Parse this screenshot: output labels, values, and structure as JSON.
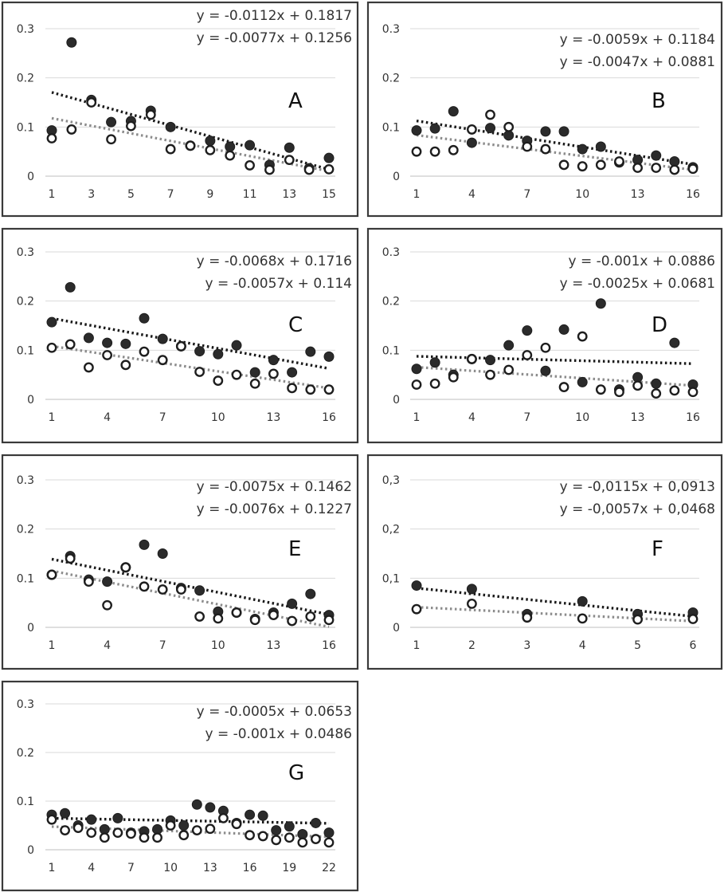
{
  "chart_data": [
    {
      "type": "scatter",
      "panel_label": "A",
      "equations": [
        "y = -0.0112x + 0.1817",
        "y = -0.0077x + 0.1256"
      ],
      "ylim": [
        0,
        0.3
      ],
      "y_ticks": [
        "0",
        "0.1",
        "0.2",
        "0.3"
      ],
      "xlim": [
        1,
        15
      ],
      "x_ticks": [
        "1",
        "3",
        "5",
        "7",
        "9",
        "11",
        "13",
        "15"
      ],
      "grid": true,
      "series": [
        {
          "marker": "filled",
          "x": [
            1,
            2,
            3,
            4,
            5,
            6,
            7,
            8,
            9,
            10,
            11,
            12,
            13,
            14,
            15
          ],
          "y": [
            0.093,
            0.272,
            0.155,
            0.11,
            0.112,
            0.133,
            0.1,
            0.062,
            0.072,
            0.06,
            0.063,
            0.023,
            0.058,
            0.016,
            0.037
          ],
          "trend": {
            "slope": -0.0112,
            "intercept": 0.1817
          }
        },
        {
          "marker": "open",
          "x": [
            1,
            2,
            3,
            4,
            5,
            6,
            7,
            8,
            9,
            10,
            11,
            12,
            13,
            14,
            15
          ],
          "y": [
            0.077,
            0.095,
            0.15,
            0.075,
            0.102,
            0.125,
            0.055,
            0.062,
            0.053,
            0.042,
            0.022,
            0.013,
            0.033,
            0.013,
            0.014
          ],
          "trend": {
            "slope": -0.0077,
            "intercept": 0.1256
          }
        }
      ]
    },
    {
      "type": "scatter",
      "panel_label": "B",
      "equations": [
        "y = -0.0059x + 0.1184",
        "y = -0.0047x + 0.0881"
      ],
      "ylim": [
        0,
        0.3
      ],
      "y_ticks": [
        "0",
        "0.1",
        "0.2",
        "0.3"
      ],
      "xlim": [
        1,
        16
      ],
      "x_ticks": [
        "1",
        "4",
        "7",
        "10",
        "13",
        "16"
      ],
      "grid": true,
      "series": [
        {
          "marker": "filled",
          "x": [
            1,
            2,
            3,
            4,
            5,
            6,
            7,
            8,
            9,
            10,
            11,
            12,
            13,
            14,
            15,
            16
          ],
          "y": [
            0.093,
            0.097,
            0.132,
            0.068,
            0.098,
            0.083,
            0.072,
            0.091,
            0.091,
            0.055,
            0.06,
            0.028,
            0.033,
            0.042,
            0.03,
            0.018
          ],
          "trend": {
            "slope": -0.0059,
            "intercept": 0.1184
          }
        },
        {
          "marker": "open",
          "x": [
            1,
            2,
            3,
            4,
            5,
            6,
            7,
            8,
            9,
            10,
            11,
            12,
            13,
            14,
            15,
            16
          ],
          "y": [
            0.05,
            0.05,
            0.053,
            0.095,
            0.125,
            0.1,
            0.06,
            0.055,
            0.023,
            0.02,
            0.023,
            0.03,
            0.017,
            0.017,
            0.013,
            0.015
          ],
          "trend": {
            "slope": -0.0047,
            "intercept": 0.0881
          }
        }
      ]
    },
    {
      "type": "scatter",
      "panel_label": "C",
      "equations": [
        "y = -0.0068x + 0.1716",
        "y = -0.0057x + 0.114"
      ],
      "ylim": [
        0,
        0.3
      ],
      "y_ticks": [
        "0",
        "0.1",
        "0.2",
        "0.3"
      ],
      "xlim": [
        1,
        16
      ],
      "x_ticks": [
        "1",
        "4",
        "7",
        "10",
        "13",
        "16"
      ],
      "grid": true,
      "series": [
        {
          "marker": "filled",
          "x": [
            1,
            2,
            3,
            4,
            5,
            6,
            7,
            8,
            9,
            10,
            11,
            12,
            13,
            14,
            15,
            16
          ],
          "y": [
            0.157,
            0.228,
            0.125,
            0.115,
            0.113,
            0.165,
            0.123,
            0.108,
            0.098,
            0.092,
            0.11,
            0.055,
            0.08,
            0.055,
            0.097,
            0.087
          ],
          "trend": {
            "slope": -0.0068,
            "intercept": 0.1716
          }
        },
        {
          "marker": "open",
          "x": [
            1,
            2,
            3,
            4,
            5,
            6,
            7,
            8,
            9,
            10,
            11,
            12,
            13,
            14,
            15,
            16
          ],
          "y": [
            0.105,
            0.112,
            0.065,
            0.09,
            0.07,
            0.097,
            0.08,
            0.108,
            0.056,
            0.038,
            0.05,
            0.032,
            0.052,
            0.023,
            0.02,
            0.02
          ],
          "trend": {
            "slope": -0.0057,
            "intercept": 0.114
          }
        }
      ]
    },
    {
      "type": "scatter",
      "panel_label": "D",
      "equations": [
        "y = -0.001x + 0.0886",
        "y = -0.0025x + 0.0681"
      ],
      "ylim": [
        0,
        0.3
      ],
      "y_ticks": [
        "0",
        "0.1",
        "0.2",
        "0.3"
      ],
      "xlim": [
        1,
        16
      ],
      "x_ticks": [
        "1",
        "4",
        "7",
        "10",
        "13",
        "16"
      ],
      "grid": true,
      "series": [
        {
          "marker": "filled",
          "x": [
            1,
            2,
            3,
            4,
            5,
            6,
            7,
            8,
            9,
            10,
            11,
            12,
            13,
            14,
            15,
            16
          ],
          "y": [
            0.062,
            0.075,
            0.05,
            0.082,
            0.08,
            0.11,
            0.14,
            0.058,
            0.142,
            0.035,
            0.195,
            0.02,
            0.045,
            0.032,
            0.115,
            0.03
          ],
          "trend": {
            "slope": -0.001,
            "intercept": 0.0886
          }
        },
        {
          "marker": "open",
          "x": [
            1,
            2,
            3,
            4,
            5,
            6,
            7,
            8,
            9,
            10,
            11,
            12,
            13,
            14,
            15,
            16
          ],
          "y": [
            0.03,
            0.032,
            0.045,
            0.082,
            0.05,
            0.06,
            0.09,
            0.105,
            0.025,
            0.128,
            0.02,
            0.015,
            0.028,
            0.012,
            0.018,
            0.015
          ],
          "trend": {
            "slope": -0.0025,
            "intercept": 0.0681
          }
        }
      ]
    },
    {
      "type": "scatter",
      "panel_label": "E",
      "equations": [
        "y = -0.0075x + 0.1462",
        "y = -0.0076x + 0.1227"
      ],
      "ylim": [
        0,
        0.3
      ],
      "y_ticks": [
        "0",
        "0.1",
        "0.2",
        "0.3"
      ],
      "xlim": [
        1,
        16
      ],
      "x_ticks": [
        "1",
        "4",
        "7",
        "10",
        "13",
        "16"
      ],
      "grid": true,
      "series": [
        {
          "marker": "filled",
          "x": [
            1,
            2,
            3,
            4,
            5,
            6,
            7,
            8,
            9,
            10,
            11,
            12,
            13,
            14,
            15,
            16
          ],
          "y": [
            0.107,
            0.145,
            0.097,
            0.093,
            0.122,
            0.168,
            0.15,
            0.08,
            0.075,
            0.032,
            0.03,
            0.017,
            0.03,
            0.048,
            0.068,
            0.025
          ],
          "trend": {
            "slope": -0.0075,
            "intercept": 0.1462
          }
        },
        {
          "marker": "open",
          "x": [
            1,
            2,
            3,
            4,
            5,
            6,
            7,
            8,
            9,
            10,
            11,
            12,
            13,
            14,
            15,
            16
          ],
          "y": [
            0.107,
            0.14,
            0.093,
            0.045,
            0.122,
            0.083,
            0.077,
            0.077,
            0.022,
            0.018,
            0.03,
            0.015,
            0.025,
            0.013,
            0.022,
            0.015
          ],
          "trend": {
            "slope": -0.0076,
            "intercept": 0.1227
          }
        }
      ]
    },
    {
      "type": "scatter",
      "panel_label": "F",
      "equations": [
        "y = -0,0115x + 0,0913",
        "y = -0,0057x + 0,0468"
      ],
      "ylim": [
        0,
        0.3
      ],
      "y_ticks": [
        "0",
        "0,1",
        "0,2",
        "0,3"
      ],
      "xlim": [
        1,
        6
      ],
      "x_ticks": [
        "1",
        "2",
        "3",
        "4",
        "5",
        "6"
      ],
      "grid": true,
      "series": [
        {
          "marker": "filled",
          "x": [
            1,
            2,
            3,
            4,
            5,
            6
          ],
          "y": [
            0.085,
            0.078,
            0.027,
            0.053,
            0.027,
            0.03
          ],
          "trend": {
            "slope": -0.0115,
            "intercept": 0.0913
          }
        },
        {
          "marker": "open",
          "x": [
            1,
            2,
            3,
            4,
            5,
            6
          ],
          "y": [
            0.037,
            0.048,
            0.02,
            0.018,
            0.016,
            0.017
          ],
          "trend": {
            "slope": -0.0057,
            "intercept": 0.0468
          }
        }
      ]
    },
    {
      "type": "scatter",
      "panel_label": "G",
      "equations": [
        "y = -0.0005x + 0.0653",
        "y = -0.001x + 0.0486"
      ],
      "ylim": [
        0,
        0.3
      ],
      "y_ticks": [
        "0",
        "0.1",
        "0.2",
        "0.3"
      ],
      "xlim": [
        1,
        22
      ],
      "x_ticks": [
        "1",
        "4",
        "7",
        "10",
        "13",
        "16",
        "19",
        "22"
      ],
      "grid": true,
      "series": [
        {
          "marker": "filled",
          "x": [
            1,
            2,
            3,
            4,
            5,
            6,
            7,
            8,
            9,
            10,
            11,
            12,
            13,
            14,
            15,
            16,
            17,
            18,
            19,
            20,
            21,
            22
          ],
          "y": [
            0.072,
            0.075,
            0.05,
            0.062,
            0.042,
            0.065,
            0.035,
            0.038,
            0.042,
            0.06,
            0.05,
            0.093,
            0.087,
            0.08,
            0.055,
            0.072,
            0.07,
            0.04,
            0.048,
            0.032,
            0.055,
            0.035
          ],
          "trend": {
            "slope": -0.0005,
            "intercept": 0.0653
          }
        },
        {
          "marker": "open",
          "x": [
            1,
            2,
            3,
            4,
            5,
            6,
            7,
            8,
            9,
            10,
            11,
            12,
            13,
            14,
            15,
            16,
            17,
            18,
            19,
            20,
            21,
            22
          ],
          "y": [
            0.062,
            0.04,
            0.045,
            0.035,
            0.025,
            0.035,
            0.033,
            0.025,
            0.025,
            0.05,
            0.03,
            0.04,
            0.043,
            0.065,
            0.053,
            0.03,
            0.028,
            0.02,
            0.025,
            0.015,
            0.022,
            0.015
          ],
          "trend": {
            "slope": -0.001,
            "intercept": 0.0486
          }
        }
      ]
    }
  ]
}
